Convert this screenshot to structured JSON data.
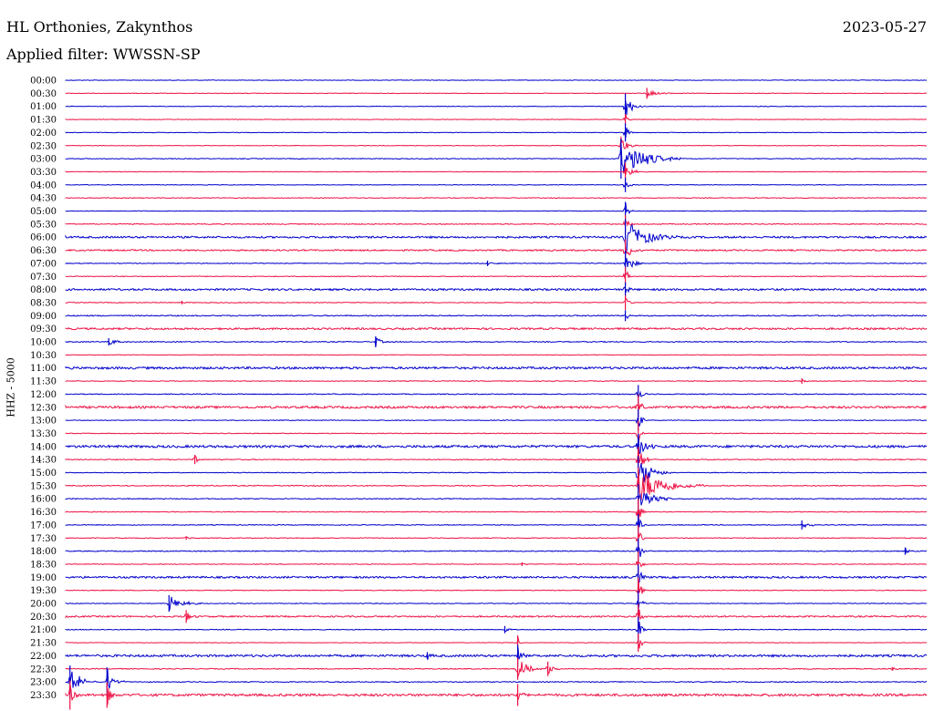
{
  "header": {
    "station": "HL Orthonies, Zakynthos",
    "date": "2023-05-27",
    "filter": "Applied filter: WWSSN-SP"
  },
  "chart_data": {
    "type": "line",
    "ylabel": "HHZ - 5000",
    "colors": {
      "odd": "#0000cc",
      "even": "#ee1144"
    },
    "rows": [
      {
        "label": "00:00",
        "noise": 0.3,
        "events": []
      },
      {
        "label": "00:30",
        "noise": 0.3,
        "events": [
          {
            "t": 0.675,
            "amp": 6,
            "dur": 0.03
          }
        ]
      },
      {
        "label": "01:00",
        "noise": 0.3,
        "events": [
          {
            "t": 0.65,
            "amp": 14,
            "dur": 0.02
          }
        ]
      },
      {
        "label": "01:30",
        "noise": 0.3,
        "events": [
          {
            "t": 0.65,
            "amp": 6,
            "dur": 0.01
          }
        ]
      },
      {
        "label": "02:00",
        "noise": 0.3,
        "events": [
          {
            "t": 0.65,
            "amp": 10,
            "dur": 0.01
          }
        ]
      },
      {
        "label": "02:30",
        "noise": 0.3,
        "events": [
          {
            "t": 0.645,
            "amp": 10,
            "dur": 0.02
          }
        ]
      },
      {
        "label": "03:00",
        "noise": 0.4,
        "events": [
          {
            "t": 0.645,
            "amp": 22,
            "dur": 0.07
          }
        ]
      },
      {
        "label": "03:30",
        "noise": 0.3,
        "events": [
          {
            "t": 0.65,
            "amp": 10,
            "dur": 0.02
          }
        ]
      },
      {
        "label": "04:00",
        "noise": 0.3,
        "events": [
          {
            "t": 0.65,
            "amp": 8,
            "dur": 0.01
          }
        ]
      },
      {
        "label": "04:30",
        "noise": 0.4,
        "events": []
      },
      {
        "label": "05:00",
        "noise": 0.3,
        "events": [
          {
            "t": 0.65,
            "amp": 10,
            "dur": 0.01
          }
        ]
      },
      {
        "label": "05:30",
        "noise": 0.5,
        "events": [
          {
            "t": 0.65,
            "amp": 10,
            "dur": 0.01
          }
        ]
      },
      {
        "label": "06:00",
        "noise": 1.0,
        "events": [
          {
            "t": 0.65,
            "amp": 20,
            "dur": 0.06
          }
        ]
      },
      {
        "label": "06:30",
        "noise": 0.8,
        "events": [
          {
            "t": 0.65,
            "amp": 12,
            "dur": 0.02
          }
        ]
      },
      {
        "label": "07:00",
        "noise": 0.4,
        "events": [
          {
            "t": 0.65,
            "amp": 14,
            "dur": 0.02
          },
          {
            "t": 0.49,
            "amp": 3,
            "dur": 0.02
          }
        ]
      },
      {
        "label": "07:30",
        "noise": 0.4,
        "events": [
          {
            "t": 0.65,
            "amp": 10,
            "dur": 0.01
          }
        ]
      },
      {
        "label": "08:00",
        "noise": 1.0,
        "events": [
          {
            "t": 0.65,
            "amp": 8,
            "dur": 0.01
          }
        ]
      },
      {
        "label": "08:30",
        "noise": 0.4,
        "events": [
          {
            "t": 0.65,
            "amp": 8,
            "dur": 0.01
          },
          {
            "t": 0.135,
            "amp": 2,
            "dur": 0.008
          }
        ]
      },
      {
        "label": "09:00",
        "noise": 0.6,
        "events": [
          {
            "t": 0.65,
            "amp": 6,
            "dur": 0.01
          }
        ]
      },
      {
        "label": "09:30",
        "noise": 1.0,
        "events": []
      },
      {
        "label": "10:00",
        "noise": 0.5,
        "events": [
          {
            "t": 0.05,
            "amp": 4,
            "dur": 0.03
          },
          {
            "t": 0.36,
            "amp": 6,
            "dur": 0.015
          }
        ]
      },
      {
        "label": "10:30",
        "noise": 0.3,
        "events": []
      },
      {
        "label": "11:00",
        "noise": 1.2,
        "events": []
      },
      {
        "label": "11:30",
        "noise": 0.4,
        "events": [
          {
            "t": 0.855,
            "amp": 3,
            "dur": 0.01
          }
        ]
      },
      {
        "label": "12:00",
        "noise": 0.5,
        "events": [
          {
            "t": 0.665,
            "amp": 10,
            "dur": 0.01
          }
        ]
      },
      {
        "label": "12:30",
        "noise": 1.2,
        "events": [
          {
            "t": 0.665,
            "amp": 14,
            "dur": 0.01
          }
        ]
      },
      {
        "label": "13:00",
        "noise": 0.4,
        "events": [
          {
            "t": 0.665,
            "amp": 12,
            "dur": 0.01
          }
        ]
      },
      {
        "label": "13:30",
        "noise": 0.4,
        "events": [
          {
            "t": 0.665,
            "amp": 14,
            "dur": 0.01
          }
        ]
      },
      {
        "label": "14:00",
        "noise": 1.3,
        "events": [
          {
            "t": 0.665,
            "amp": 14,
            "dur": 0.02
          }
        ]
      },
      {
        "label": "14:30",
        "noise": 0.5,
        "events": [
          {
            "t": 0.15,
            "amp": 5,
            "dur": 0.01
          },
          {
            "t": 0.665,
            "amp": 14,
            "dur": 0.02
          }
        ]
      },
      {
        "label": "15:00",
        "noise": 0.4,
        "events": [
          {
            "t": 0.665,
            "amp": 18,
            "dur": 0.04
          }
        ]
      },
      {
        "label": "15:30",
        "noise": 0.5,
        "events": [
          {
            "t": 0.665,
            "amp": 20,
            "dur": 0.08
          }
        ]
      },
      {
        "label": "16:00",
        "noise": 0.5,
        "events": [
          {
            "t": 0.665,
            "amp": 16,
            "dur": 0.04
          }
        ]
      },
      {
        "label": "16:30",
        "noise": 0.4,
        "events": [
          {
            "t": 0.665,
            "amp": 14,
            "dur": 0.01
          }
        ]
      },
      {
        "label": "17:00",
        "noise": 0.4,
        "events": [
          {
            "t": 0.665,
            "amp": 12,
            "dur": 0.01
          },
          {
            "t": 0.855,
            "amp": 5,
            "dur": 0.025
          }
        ]
      },
      {
        "label": "17:30",
        "noise": 0.4,
        "events": [
          {
            "t": 0.665,
            "amp": 14,
            "dur": 0.01
          },
          {
            "t": 0.14,
            "amp": 2,
            "dur": 0.01
          }
        ]
      },
      {
        "label": "18:00",
        "noise": 0.5,
        "events": [
          {
            "t": 0.665,
            "amp": 14,
            "dur": 0.01
          },
          {
            "t": 0.975,
            "amp": 4,
            "dur": 0.01
          }
        ]
      },
      {
        "label": "18:30",
        "noise": 0.4,
        "events": [
          {
            "t": 0.665,
            "amp": 14,
            "dur": 0.01
          },
          {
            "t": 0.53,
            "amp": 2,
            "dur": 0.01
          }
        ]
      },
      {
        "label": "19:00",
        "noise": 1.0,
        "events": [
          {
            "t": 0.665,
            "amp": 14,
            "dur": 0.01
          }
        ]
      },
      {
        "label": "19:30",
        "noise": 0.4,
        "events": [
          {
            "t": 0.665,
            "amp": 14,
            "dur": 0.01
          }
        ]
      },
      {
        "label": "20:00",
        "noise": 0.4,
        "events": [
          {
            "t": 0.12,
            "amp": 9,
            "dur": 0.04
          },
          {
            "t": 0.665,
            "amp": 14,
            "dur": 0.01
          }
        ]
      },
      {
        "label": "20:30",
        "noise": 0.8,
        "events": [
          {
            "t": 0.14,
            "amp": 7,
            "dur": 0.015
          },
          {
            "t": 0.665,
            "amp": 14,
            "dur": 0.01
          }
        ]
      },
      {
        "label": "21:00",
        "noise": 0.4,
        "events": [
          {
            "t": 0.51,
            "amp": 4,
            "dur": 0.01
          },
          {
            "t": 0.665,
            "amp": 14,
            "dur": 0.01
          }
        ]
      },
      {
        "label": "21:30",
        "noise": 0.3,
        "events": [
          {
            "t": 0.665,
            "amp": 10,
            "dur": 0.01
          },
          {
            "t": 0.525,
            "amp": 8,
            "dur": 0.005
          }
        ]
      },
      {
        "label": "22:00",
        "noise": 1.2,
        "events": [
          {
            "t": 0.42,
            "amp": 4,
            "dur": 0.01
          },
          {
            "t": 0.525,
            "amp": 12,
            "dur": 0.01
          }
        ]
      },
      {
        "label": "22:30",
        "noise": 0.5,
        "events": [
          {
            "t": 0.525,
            "amp": 12,
            "dur": 0.03
          },
          {
            "t": 0.56,
            "amp": 8,
            "dur": 0.015
          },
          {
            "t": 0.96,
            "amp": 2,
            "dur": 0.01
          }
        ]
      },
      {
        "label": "23:00",
        "noise": 0.5,
        "events": [
          {
            "t": 0.005,
            "amp": 18,
            "dur": 0.03
          },
          {
            "t": 0.048,
            "amp": 16,
            "dur": 0.02
          }
        ]
      },
      {
        "label": "23:30",
        "noise": 1.3,
        "events": [
          {
            "t": 0.005,
            "amp": 16,
            "dur": 0.01
          },
          {
            "t": 0.048,
            "amp": 14,
            "dur": 0.01
          },
          {
            "t": 0.525,
            "amp": 12,
            "dur": 0.01
          }
        ]
      }
    ]
  }
}
